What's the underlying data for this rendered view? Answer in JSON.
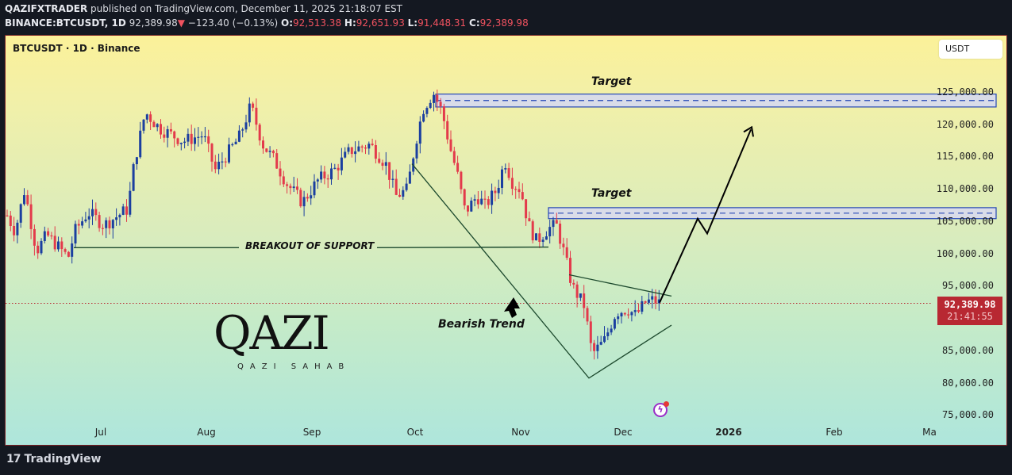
{
  "header": {
    "publisher": "QAZIFXTRADER",
    "published_text": "published on TradingView.com, December 11, 2025 21:18:07 EST",
    "symbol_full": "BINANCE:BTCUSDT, 1D",
    "last_price": "92,389.98",
    "change_arrow": "▼",
    "change": "−123.40 (−0.13%)",
    "open_label": "O:",
    "open": "92,513.38",
    "high_label": "H:",
    "high": "92,651.93",
    "low_label": "L:",
    "low": "91,448.31",
    "close_label": "C:",
    "close": "92,389.98"
  },
  "chart": {
    "symbol_label": "BTCUSDT · 1D · Binance",
    "currency_button": "USDT",
    "price_tag": {
      "price": "92,389.98",
      "countdown": "21:41:55"
    },
    "y_ticks": [
      "125,000.00",
      "120,000.00",
      "115,000.00",
      "110,000.00",
      "105,000.00",
      "100,000.00",
      "95,000.00",
      "85,000.00",
      "80,000.00",
      "75,000.00"
    ],
    "x_ticks": [
      "Jul",
      "Aug",
      "Sep",
      "Oct",
      "Nov",
      "Dec",
      "2026",
      "Feb",
      "Ma"
    ],
    "annotations": {
      "target_upper": "Target",
      "target_lower": "Target",
      "breakout": "BREAKOUT OF SUPPORT",
      "bearish": "Bearish Trend"
    },
    "watermark": {
      "logo": "QAZI",
      "subtitle": "QAZI SAHAB"
    },
    "colors": {
      "up": "#1b3fa0",
      "down": "#e33a4b",
      "price_tag": "#b82832",
      "target_zone": "#d9dce8",
      "target_border": "#2447b5"
    }
  },
  "footer": {
    "brand": "TradingView"
  },
  "chart_data": {
    "type": "candlestick",
    "title": "BTCUSDT · 1D · Binance",
    "xlabel": "",
    "ylabel": "USDT",
    "ylim": [
      73000,
      130000
    ],
    "x_ticks": [
      "Jul",
      "Aug",
      "Sep",
      "Oct",
      "Nov",
      "Dec",
      "2026",
      "Feb",
      "Ma"
    ],
    "last_price": 92389.98,
    "ohlc_last": {
      "open": 92513.38,
      "high": 92651.93,
      "low": 91448.31,
      "close": 92389.98
    },
    "approx_path": [
      {
        "date": "late Jun",
        "price": 106000
      },
      {
        "date": "early Jul",
        "price": 101000
      },
      {
        "date": "mid Jul",
        "price": 122000
      },
      {
        "date": "mid Aug",
        "price": 124000
      },
      {
        "date": "early Sep",
        "price": 108000
      },
      {
        "date": "late Sep",
        "price": 109000
      },
      {
        "date": "early Oct",
        "price": 125500
      },
      {
        "date": "Oct 10",
        "price": 102000
      },
      {
        "date": "late Oct",
        "price": 115000
      },
      {
        "date": "early Nov",
        "price": 101000
      },
      {
        "date": "Nov 21",
        "price": 81000
      },
      {
        "date": "early Dec",
        "price": 93000
      },
      {
        "date": "Dec 11",
        "price": 92390
      }
    ],
    "zones": [
      {
        "label": "Target",
        "low": 122800,
        "high": 124800
      },
      {
        "label": "Target",
        "low": 105500,
        "high": 107200
      }
    ],
    "lines": [
      {
        "label": "BREAKOUT OF SUPPORT",
        "price": 101000
      },
      {
        "label": "Bearish Trend",
        "from_price": 114000,
        "to_price": 80800
      }
    ],
    "projection": [
      92500,
      105500,
      104000,
      119500
    ],
    "grid": false,
    "legend": "none"
  }
}
